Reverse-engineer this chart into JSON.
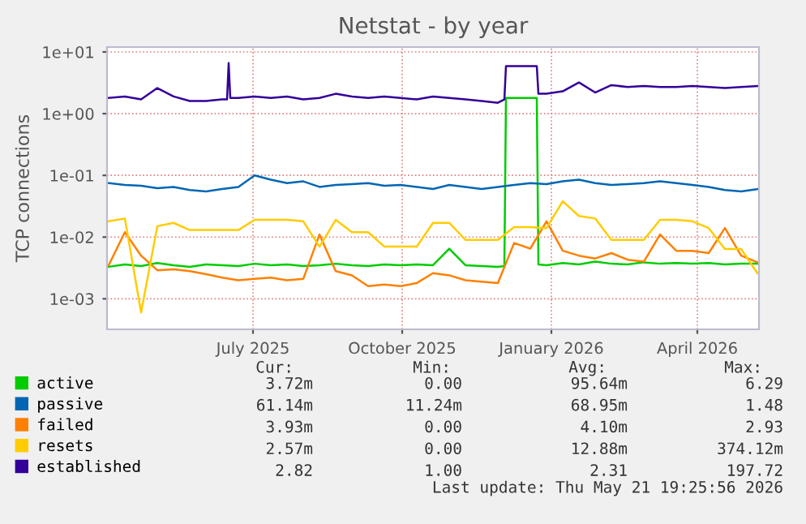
{
  "chart_data": {
    "type": "line",
    "title": "Netstat - by year",
    "ylabel": "TCP connections",
    "log": "y",
    "grid": true,
    "legend": "bottom left",
    "marker": "none",
    "line_style": "solid",
    "ylim": [
      0.00032,
      12
    ],
    "yticks": [
      {
        "value": 0.001,
        "label": "1e-03"
      },
      {
        "value": 0.01,
        "label": "1e-02"
      },
      {
        "value": 0.1,
        "label": "1e-01"
      },
      {
        "value": 1,
        "label": "1e+00"
      },
      {
        "value": 10,
        "label": "1e+01"
      }
    ],
    "xlim": [
      "2025-04-02",
      "2026-05-09"
    ],
    "xticks": [
      {
        "value": "2025-07-01",
        "label": "July 2025"
      },
      {
        "value": "2025-10-01",
        "label": "October 2025"
      },
      {
        "value": "2026-01-01",
        "label": "January 2026"
      },
      {
        "value": "2026-04-01",
        "label": "April 2026"
      }
    ],
    "x": [
      "2025-04-03",
      "2025-04-13",
      "2025-04-23",
      "2025-05-03",
      "2025-05-13",
      "2025-05-23",
      "2025-06-02",
      "2025-06-12",
      "2025-06-22",
      "2025-07-02",
      "2025-07-12",
      "2025-07-22",
      "2025-08-01",
      "2025-08-11",
      "2025-08-21",
      "2025-08-31",
      "2025-09-10",
      "2025-09-20",
      "2025-09-30",
      "2025-10-10",
      "2025-10-20",
      "2025-10-30",
      "2025-11-09",
      "2025-11-19",
      "2025-11-29",
      "2025-12-09",
      "2025-12-19",
      "2025-12-29",
      "2026-01-08",
      "2026-01-18",
      "2026-01-28",
      "2026-02-07",
      "2026-02-17",
      "2026-02-27",
      "2026-03-09",
      "2026-03-19",
      "2026-03-29",
      "2026-04-08",
      "2026-04-18",
      "2026-04-28",
      "2026-05-08"
    ],
    "series": [
      {
        "name": "active",
        "color": "#00cc00",
        "x": [
          "2025-04-03",
          "2025-04-13",
          "2025-04-23",
          "2025-05-03",
          "2025-05-13",
          "2025-05-23",
          "2025-06-02",
          "2025-06-12",
          "2025-06-22",
          "2025-07-02",
          "2025-07-12",
          "2025-07-22",
          "2025-08-01",
          "2025-08-11",
          "2025-08-21",
          "2025-08-31",
          "2025-09-10",
          "2025-09-20",
          "2025-09-30",
          "2025-10-10",
          "2025-10-20",
          "2025-10-30",
          "2025-11-09",
          "2025-11-19",
          "2025-11-29",
          "2025-12-03",
          "2025-12-04",
          "2025-12-23",
          "2025-12-24",
          "2025-12-29",
          "2026-01-08",
          "2026-01-18",
          "2026-01-28",
          "2026-02-07",
          "2026-02-17",
          "2026-02-27",
          "2026-03-09",
          "2026-03-19",
          "2026-03-29",
          "2026-04-08",
          "2026-04-18",
          "2026-04-28",
          "2026-05-08"
        ],
        "values": [
          0.0033,
          0.0036,
          0.0034,
          0.0038,
          0.0035,
          0.0033,
          0.0036,
          0.0035,
          0.0034,
          0.0037,
          0.0035,
          0.0036,
          0.0034,
          0.0035,
          0.0037,
          0.0035,
          0.0034,
          0.0036,
          0.0035,
          0.0036,
          0.0035,
          0.0065,
          0.0035,
          0.0034,
          0.0033,
          0.0034,
          1.8,
          1.8,
          0.0036,
          0.0035,
          0.0038,
          0.0036,
          0.004,
          0.0037,
          0.0036,
          0.0039,
          0.0037,
          0.0038,
          0.0037,
          0.0038,
          0.0036,
          0.0037,
          0.0037
        ]
      },
      {
        "name": "passive",
        "color": "#0066b3",
        "values": [
          0.075,
          0.07,
          0.068,
          0.062,
          0.065,
          0.058,
          0.055,
          0.06,
          0.065,
          0.1,
          0.085,
          0.075,
          0.08,
          0.065,
          0.07,
          0.072,
          0.075,
          0.068,
          0.07,
          0.065,
          0.06,
          0.07,
          0.065,
          0.06,
          0.065,
          0.07,
          0.075,
          0.072,
          0.08,
          0.085,
          0.075,
          0.07,
          0.072,
          0.075,
          0.08,
          0.075,
          0.07,
          0.065,
          0.058,
          0.055,
          0.06
        ]
      },
      {
        "name": "failed",
        "color": "#ff8000",
        "values": [
          0.0035,
          0.012,
          0.005,
          0.0029,
          0.003,
          0.0028,
          0.0025,
          0.0022,
          0.002,
          0.0021,
          0.0022,
          0.002,
          0.0021,
          0.011,
          0.0028,
          0.0024,
          0.0016,
          0.0017,
          0.0016,
          0.0018,
          0.0026,
          0.0024,
          0.002,
          0.0019,
          0.0018,
          0.008,
          0.0065,
          0.018,
          0.006,
          0.005,
          0.0045,
          0.0055,
          0.0043,
          0.004,
          0.011,
          0.006,
          0.006,
          0.0055,
          0.014,
          0.005,
          0.0039
        ]
      },
      {
        "name": "resets",
        "color": "#ffcc00",
        "values": [
          0.018,
          0.02,
          0.0006,
          0.015,
          0.017,
          0.013,
          0.013,
          0.013,
          0.013,
          0.019,
          0.019,
          0.019,
          0.018,
          0.007,
          0.019,
          0.012,
          0.012,
          0.007,
          0.007,
          0.007,
          0.017,
          0.017,
          0.009,
          0.009,
          0.009,
          0.0145,
          0.0145,
          0.014,
          0.038,
          0.022,
          0.02,
          0.009,
          0.009,
          0.009,
          0.019,
          0.019,
          0.018,
          0.014,
          0.0064,
          0.0064,
          0.0026
        ]
      },
      {
        "name": "established",
        "color": "#330099",
        "x": [
          "2025-04-03",
          "2025-04-13",
          "2025-04-23",
          "2025-05-03",
          "2025-05-13",
          "2025-05-23",
          "2025-06-02",
          "2025-06-12",
          "2025-06-15",
          "2025-06-16",
          "2025-06-17",
          "2025-06-22",
          "2025-07-02",
          "2025-07-12",
          "2025-07-22",
          "2025-08-01",
          "2025-08-11",
          "2025-08-21",
          "2025-08-31",
          "2025-09-10",
          "2025-09-20",
          "2025-09-30",
          "2025-10-10",
          "2025-10-20",
          "2025-10-30",
          "2025-11-09",
          "2025-11-19",
          "2025-11-29",
          "2025-12-03",
          "2025-12-04",
          "2025-12-23",
          "2025-12-24",
          "2025-12-29",
          "2026-01-08",
          "2026-01-18",
          "2026-01-28",
          "2026-02-07",
          "2026-02-17",
          "2026-02-27",
          "2026-03-09",
          "2026-03-19",
          "2026-03-29",
          "2026-04-08",
          "2026-04-18",
          "2026-04-28",
          "2026-05-08"
        ],
        "values": [
          1.8,
          1.9,
          1.7,
          2.6,
          1.9,
          1.6,
          1.6,
          1.7,
          1.7,
          6.6,
          1.8,
          1.8,
          1.9,
          1.8,
          1.9,
          1.7,
          1.8,
          2.1,
          1.9,
          1.8,
          1.9,
          1.8,
          1.7,
          1.9,
          1.8,
          1.7,
          1.6,
          1.5,
          1.7,
          5.9,
          5.9,
          2.1,
          2.1,
          2.3,
          3.2,
          2.2,
          2.9,
          2.7,
          2.8,
          2.7,
          2.7,
          2.8,
          2.7,
          2.6,
          2.7,
          2.8
        ]
      }
    ],
    "annotations": [
      "Cur:",
      "Min:",
      "Avg:",
      "Max:",
      "3.72m",
      "0.00",
      "95.64m",
      "6.29",
      "61.14m",
      "11.24m",
      "68.95m",
      "1.48",
      "3.93m",
      "0.00",
      "4.10m",
      "2.93",
      "2.57m",
      "0.00",
      "12.88m",
      "374.12m",
      "2.82",
      "1.00",
      "2.31",
      "197.72",
      "Last update: Thu May 21 19:25:56 2026"
    ]
  }
}
